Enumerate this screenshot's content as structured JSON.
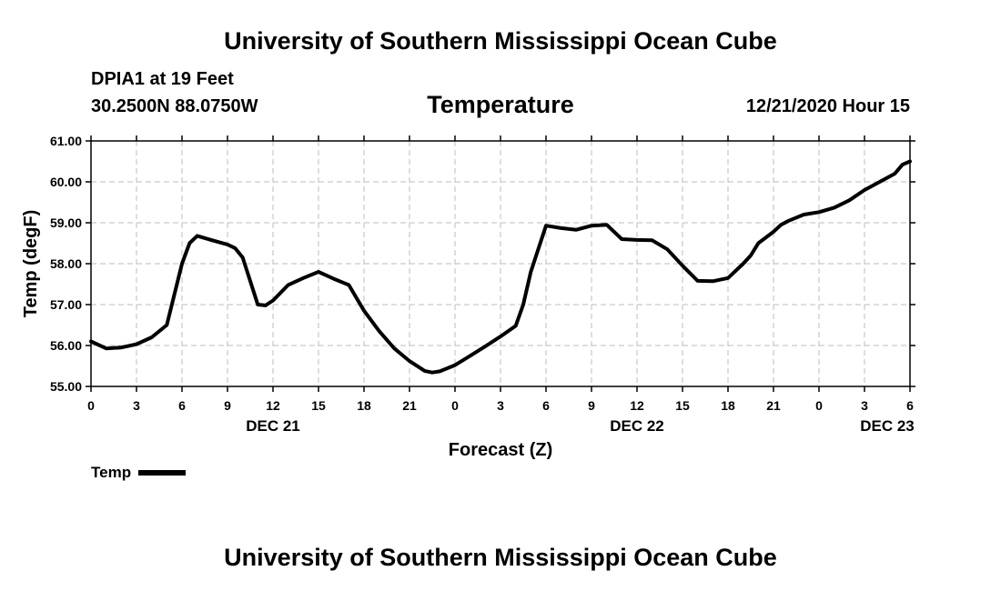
{
  "header": {
    "title": "University of Southern Mississippi Ocean Cube",
    "station": "DPIA1 at 19 Feet",
    "coords": "30.2500N 88.0750W",
    "variable": "Temperature",
    "datetime": "12/21/2020 Hour 15"
  },
  "footer": {
    "title": "University of Southern Mississippi Ocean Cube"
  },
  "legend": {
    "label": "Temp"
  },
  "chart_data": {
    "type": "line",
    "title": "Temperature",
    "xlabel": "Forecast (Z)",
    "ylabel": "Temp (degF)",
    "xlim": [
      0,
      54
    ],
    "ylim": [
      55.0,
      61.0
    ],
    "grid": true,
    "legend_position": "bottom-left",
    "x_tick_values": [
      0,
      3,
      6,
      9,
      12,
      15,
      18,
      21,
      24,
      27,
      30,
      33,
      36,
      39,
      42,
      45,
      48,
      51,
      54
    ],
    "x_tick_labels": [
      "0",
      "3",
      "6",
      "9",
      "12",
      "15",
      "18",
      "21",
      "0",
      "3",
      "6",
      "9",
      "12",
      "15",
      "18",
      "21",
      "0",
      "3",
      "6"
    ],
    "y_tick_values": [
      55,
      56,
      57,
      58,
      59,
      60,
      61
    ],
    "y_tick_labels": [
      "55.00",
      "56.00",
      "57.00",
      "58.00",
      "59.00",
      "60.00",
      "61.00"
    ],
    "date_labels": [
      {
        "x": 12,
        "label": "DEC 21"
      },
      {
        "x": 36,
        "label": "DEC 22"
      },
      {
        "x": 52.5,
        "label": "DEC 23"
      }
    ],
    "series": [
      {
        "name": "Temp",
        "x": [
          0,
          1,
          2,
          3,
          4,
          5,
          6,
          6.5,
          7,
          8,
          9,
          9.5,
          10,
          11,
          11.5,
          12,
          13,
          14,
          15,
          16,
          17,
          18,
          19,
          20,
          21,
          22,
          22.5,
          23,
          24,
          25,
          26,
          27,
          28,
          28.5,
          29,
          30,
          31,
          32,
          33,
          34,
          35,
          36,
          37,
          38,
          39,
          40,
          41,
          42,
          43,
          43.5,
          44,
          45,
          45.5,
          46,
          47,
          48,
          49,
          50,
          51,
          52,
          53,
          53.5,
          54
        ],
        "values": [
          56.1,
          55.93,
          55.95,
          56.03,
          56.2,
          56.5,
          58.0,
          58.5,
          58.68,
          58.57,
          58.47,
          58.38,
          58.15,
          57.0,
          56.98,
          57.1,
          57.48,
          57.65,
          57.8,
          57.63,
          57.48,
          56.85,
          56.35,
          55.93,
          55.62,
          55.38,
          55.34,
          55.37,
          55.52,
          55.75,
          55.98,
          56.22,
          56.48,
          57.0,
          57.8,
          58.93,
          58.87,
          58.83,
          58.93,
          58.95,
          58.6,
          58.58,
          58.57,
          58.35,
          57.95,
          57.58,
          57.57,
          57.65,
          58.0,
          58.2,
          58.5,
          58.78,
          58.95,
          59.05,
          59.2,
          59.26,
          59.37,
          59.55,
          59.8,
          60.0,
          60.2,
          60.42,
          60.5
        ]
      }
    ]
  }
}
